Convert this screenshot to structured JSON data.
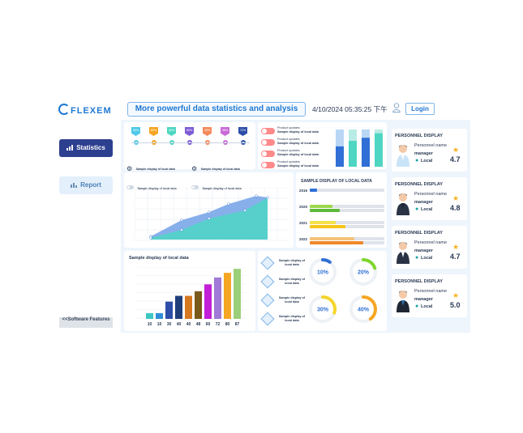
{
  "header": {
    "logo_text": "FLEXEM",
    "title": "More powerful data statistics and analysis",
    "datetime": "4/10/2024 05:35:25 下午",
    "login_label": "Login"
  },
  "sidebar": {
    "items": [
      {
        "label": "Statistics",
        "icon": "bar-chart-icon",
        "active": true
      },
      {
        "label": "Report",
        "icon": "report-icon",
        "active": false
      }
    ],
    "software_features_label": "<<Software Features"
  },
  "progress_tags": {
    "values": [
      "30%",
      "60%",
      "40%",
      "80%",
      "40%",
      "48%",
      "72%"
    ],
    "colors": [
      "#4fc8e8",
      "#f5a623",
      "#4ed6c2",
      "#7d5bd6",
      "#f58a5a",
      "#c86bd6",
      "#2d4ea8"
    ]
  },
  "legend_left": {
    "items": [
      "Sample display of local data",
      "Sample display of local data"
    ]
  },
  "product_updates": {
    "rows": [
      {
        "title": "Product updates",
        "text": "Sample display of local data"
      },
      {
        "title": "Product updates",
        "text": "Sample display of local data"
      },
      {
        "title": "Product updates",
        "text": "Sample display of local data"
      },
      {
        "title": "Product updates",
        "text": "Sample display of local data"
      }
    ]
  },
  "area_chart": {
    "toggles": [
      "Sample display of local data",
      "Sample display of local data"
    ]
  },
  "year_bars": {
    "title": "SAMPLE DISPLAY OF LOCAL DATA",
    "rows": [
      {
        "year": "2019",
        "values": [
          0.1
        ],
        "colors": [
          "#2f6fd6"
        ]
      },
      {
        "year": "2020",
        "values": [
          0.3,
          0.4
        ],
        "colors": [
          "#9cd84e",
          "#5fb83a"
        ]
      },
      {
        "year": "2021",
        "values": [
          0.35,
          0.48
        ],
        "colors": [
          "#f5e14a",
          "#f5c518"
        ]
      },
      {
        "year": "2022",
        "values": [
          0.6,
          0.72
        ],
        "colors": [
          "#f5c27a",
          "#f0882a"
        ]
      }
    ]
  },
  "bar_chart": {
    "title": "Sample display of local data",
    "labels": [
      "10",
      "10",
      "30",
      "40",
      "40",
      "48",
      "60",
      "72",
      "80",
      "87"
    ],
    "values": [
      10,
      10,
      30,
      40,
      40,
      48,
      60,
      72,
      80,
      87
    ],
    "colors": [
      "#3cc8c0",
      "#2f8fd6",
      "#2d4ea8",
      "#1f3e7a",
      "#d6781f",
      "#7a5a1a",
      "#c21fd6",
      "#a07ad6",
      "#f5a623",
      "#9ccf7a"
    ]
  },
  "gauges": {
    "labels": [
      "Sample display of local data",
      "Sample display of local data",
      "Sample display of local data",
      "Sample display of local data"
    ],
    "items": [
      {
        "value": "10%",
        "fraction": 0.1,
        "color": "#2f6fd6"
      },
      {
        "value": "20%",
        "fraction": 0.2,
        "color": "#7fd62f"
      },
      {
        "value": "30%",
        "fraction": 0.3,
        "color": "#f5d52f"
      },
      {
        "value": "40%",
        "fraction": 0.4,
        "color": "#f5a623"
      }
    ]
  },
  "personnel": {
    "cards": [
      {
        "title": "PERSONNEL DISPLAY",
        "name": "Personnel name",
        "role": "manager",
        "location": "Local",
        "score": "4.7",
        "avatar": "doctor-avatar"
      },
      {
        "title": "PERSONNEL DISPLAY",
        "name": "Personnel name",
        "role": "manager",
        "location": "Local",
        "score": "4.8",
        "avatar": "businessman-avatar"
      },
      {
        "title": "PERSONNEL DISPLAY",
        "name": "Personnel name",
        "role": "manager",
        "location": "Local",
        "score": "4.7",
        "avatar": "pilot-avatar"
      },
      {
        "title": "PERSONNEL DISPLAY",
        "name": "Personnel name",
        "role": "manager",
        "location": "Local",
        "score": "5.0",
        "avatar": "businesswoman-avatar"
      }
    ]
  }
}
